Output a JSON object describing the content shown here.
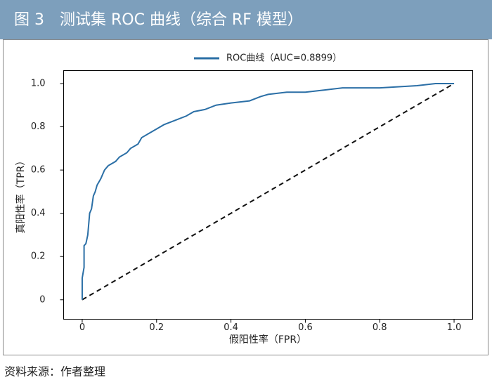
{
  "header": {
    "title": "图 3　测试集 ROC 曲线（综合 RF 模型）"
  },
  "chart_data": {
    "type": "line",
    "xlabel": "假阳性率（FPR）",
    "ylabel": "真阳性率（TPR）",
    "series": [
      {
        "name": "ROC曲线（AUC=0.8899）",
        "color": "#2b6fa6",
        "x": [
          0,
          0,
          0.005,
          0.005,
          0.01,
          0.015,
          0.02,
          0.025,
          0.03,
          0.035,
          0.04,
          0.05,
          0.06,
          0.07,
          0.09,
          0.1,
          0.12,
          0.13,
          0.15,
          0.16,
          0.18,
          0.2,
          0.22,
          0.25,
          0.28,
          0.3,
          0.33,
          0.36,
          0.4,
          0.45,
          0.48,
          0.5,
          0.55,
          0.6,
          0.65,
          0.7,
          0.8,
          0.9,
          0.95,
          1
        ],
        "values": [
          0,
          0.1,
          0.15,
          0.25,
          0.26,
          0.3,
          0.4,
          0.42,
          0.48,
          0.5,
          0.53,
          0.56,
          0.6,
          0.62,
          0.64,
          0.66,
          0.68,
          0.7,
          0.72,
          0.75,
          0.77,
          0.79,
          0.81,
          0.83,
          0.85,
          0.87,
          0.88,
          0.9,
          0.91,
          0.92,
          0.94,
          0.95,
          0.96,
          0.96,
          0.97,
          0.98,
          0.98,
          0.99,
          1,
          1
        ]
      }
    ],
    "reference_line": {
      "x": [
        0,
        1
      ],
      "y": [
        0,
        1
      ],
      "color": "#111111"
    },
    "xlim": [
      -0.05,
      1.05
    ],
    "ylim": [
      -0.09,
      1.06
    ],
    "xticks": [
      0,
      0.2,
      0.4,
      0.6,
      0.8,
      {
        "value": 1,
        "label": "1.0"
      }
    ],
    "yticks": [
      0,
      0.2,
      0.4,
      0.6,
      0.8,
      {
        "value": 1,
        "label": "1.0"
      }
    ]
  },
  "footer": {
    "source": "资料来源：作者整理"
  }
}
